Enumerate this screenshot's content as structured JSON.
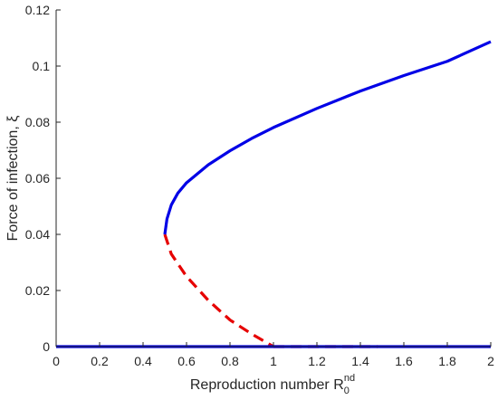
{
  "chart_data": {
    "type": "line",
    "xlabel_main": "Reproduction number R",
    "xlabel_sub": "0",
    "xlabel_sup": "nd",
    "ylabel": "Force of infection, ξ",
    "xlim": [
      0,
      2
    ],
    "ylim": [
      0,
      0.12
    ],
    "x_ticks": [
      "0",
      "0.2",
      "0.4",
      "0.6",
      "0.8",
      "1",
      "1.2",
      "1.4",
      "1.6",
      "1.8",
      "2"
    ],
    "y_ticks": [
      "0",
      "0.02",
      "0.04",
      "0.06",
      "0.08",
      "0.1",
      "0.12"
    ],
    "grid": false,
    "series": [
      {
        "style": "solid",
        "color": "#0000e6",
        "x": [
          0,
          0.5,
          1.0,
          1.5,
          2.0
        ],
        "y": [
          0,
          0,
          0,
          0,
          0
        ]
      },
      {
        "style": "dashed",
        "color": "#e60000",
        "x": [
          1.0,
          1.1,
          1.2,
          1.3,
          1.4,
          1.48
        ],
        "y": [
          0,
          0,
          0,
          0,
          0,
          0
        ]
      },
      {
        "style": "dashed",
        "color": "#e60000",
        "x": [
          0.5,
          0.53,
          0.6,
          0.7,
          0.8,
          0.9,
          1.0
        ],
        "y": [
          0.04,
          0.033,
          0.025,
          0.0165,
          0.0095,
          0.0045,
          0
        ]
      },
      {
        "style": "solid",
        "color": "#0000e6",
        "x": [
          0.5,
          0.51,
          0.53,
          0.56,
          0.6,
          0.7,
          0.8,
          0.9,
          1.0,
          1.2,
          1.4,
          1.6,
          1.8,
          2.0
        ],
        "y": [
          0.04,
          0.0455,
          0.0505,
          0.0547,
          0.0584,
          0.0648,
          0.0698,
          0.0742,
          0.0781,
          0.0849,
          0.0911,
          0.0966,
          0.1017,
          0.1087
        ]
      }
    ]
  }
}
